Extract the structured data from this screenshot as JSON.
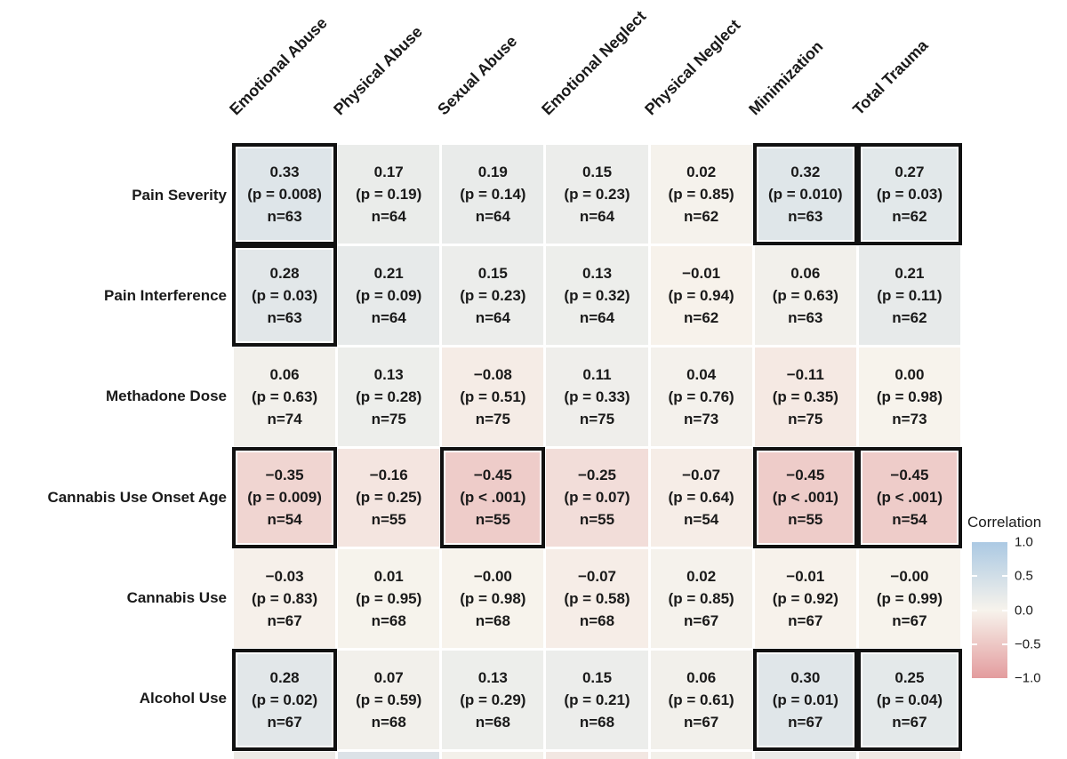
{
  "chart_data": {
    "type": "heatmap",
    "title": "",
    "description": "Correlation matrix of childhood trauma subscales vs clinical measures; each cell shows Pearson r, p-value and n; significant cells outlined in black",
    "columns": [
      "Emotional Abuse",
      "Physical Abuse",
      "Sexual Abuse",
      "Emotional Neglect",
      "Physical Neglect",
      "Minimization",
      "Total Trauma"
    ],
    "rows": [
      "Pain Severity",
      "Pain Interference",
      "Methadone Dose",
      "Cannabis Use Onset Age",
      "Cannabis Use",
      "Alcohol Use"
    ],
    "cells": [
      [
        {
          "v": 0.33,
          "d": "0.33",
          "p": "(p = 0.008)",
          "n": "n=63",
          "sig": true
        },
        {
          "v": 0.17,
          "d": "0.17",
          "p": "(p = 0.19)",
          "n": "n=64",
          "sig": false
        },
        {
          "v": 0.19,
          "d": "0.19",
          "p": "(p = 0.14)",
          "n": "n=64",
          "sig": false
        },
        {
          "v": 0.15,
          "d": "0.15",
          "p": "(p = 0.23)",
          "n": "n=64",
          "sig": false
        },
        {
          "v": 0.02,
          "d": "0.02",
          "p": "(p = 0.85)",
          "n": "n=62",
          "sig": false
        },
        {
          "v": 0.32,
          "d": "0.32",
          "p": "(p = 0.010)",
          "n": "n=63",
          "sig": true
        },
        {
          "v": 0.27,
          "d": "0.27",
          "p": "(p = 0.03)",
          "n": "n=62",
          "sig": true
        }
      ],
      [
        {
          "v": 0.28,
          "d": "0.28",
          "p": "(p = 0.03)",
          "n": "n=63",
          "sig": true
        },
        {
          "v": 0.21,
          "d": "0.21",
          "p": "(p = 0.09)",
          "n": "n=64",
          "sig": false
        },
        {
          "v": 0.15,
          "d": "0.15",
          "p": "(p = 0.23)",
          "n": "n=64",
          "sig": false
        },
        {
          "v": 0.13,
          "d": "0.13",
          "p": "(p = 0.32)",
          "n": "n=64",
          "sig": false
        },
        {
          "v": -0.01,
          "d": "−0.01",
          "p": "(p = 0.94)",
          "n": "n=62",
          "sig": false
        },
        {
          "v": 0.06,
          "d": "0.06",
          "p": "(p = 0.63)",
          "n": "n=63",
          "sig": false
        },
        {
          "v": 0.21,
          "d": "0.21",
          "p": "(p = 0.11)",
          "n": "n=62",
          "sig": false
        }
      ],
      [
        {
          "v": 0.06,
          "d": "0.06",
          "p": "(p = 0.63)",
          "n": "n=74",
          "sig": false
        },
        {
          "v": 0.13,
          "d": "0.13",
          "p": "(p = 0.28)",
          "n": "n=75",
          "sig": false
        },
        {
          "v": -0.08,
          "d": "−0.08",
          "p": "(p = 0.51)",
          "n": "n=75",
          "sig": false
        },
        {
          "v": 0.11,
          "d": "0.11",
          "p": "(p = 0.33)",
          "n": "n=75",
          "sig": false
        },
        {
          "v": 0.04,
          "d": "0.04",
          "p": "(p = 0.76)",
          "n": "n=73",
          "sig": false
        },
        {
          "v": -0.11,
          "d": "−0.11",
          "p": "(p = 0.35)",
          "n": "n=75",
          "sig": false
        },
        {
          "v": 0.0,
          "d": "0.00",
          "p": "(p = 0.98)",
          "n": "n=73",
          "sig": false
        }
      ],
      [
        {
          "v": -0.35,
          "d": "−0.35",
          "p": "(p = 0.009)",
          "n": "n=54",
          "sig": true
        },
        {
          "v": -0.16,
          "d": "−0.16",
          "p": "(p = 0.25)",
          "n": "n=55",
          "sig": false
        },
        {
          "v": -0.45,
          "d": "−0.45",
          "p": "(p < .001)",
          "n": "n=55",
          "sig": true
        },
        {
          "v": -0.25,
          "d": "−0.25",
          "p": "(p = 0.07)",
          "n": "n=55",
          "sig": false
        },
        {
          "v": -0.07,
          "d": "−0.07",
          "p": "(p = 0.64)",
          "n": "n=54",
          "sig": false
        },
        {
          "v": -0.45,
          "d": "−0.45",
          "p": "(p < .001)",
          "n": "n=55",
          "sig": true
        },
        {
          "v": -0.45,
          "d": "−0.45",
          "p": "(p < .001)",
          "n": "n=54",
          "sig": true
        }
      ],
      [
        {
          "v": -0.03,
          "d": "−0.03",
          "p": "(p = 0.83)",
          "n": "n=67",
          "sig": false
        },
        {
          "v": 0.01,
          "d": "0.01",
          "p": "(p = 0.95)",
          "n": "n=68",
          "sig": false
        },
        {
          "v": 0.0,
          "d": "−0.00",
          "p": "(p = 0.98)",
          "n": "n=68",
          "sig": false
        },
        {
          "v": -0.07,
          "d": "−0.07",
          "p": "(p = 0.58)",
          "n": "n=68",
          "sig": false
        },
        {
          "v": 0.02,
          "d": "0.02",
          "p": "(p = 0.85)",
          "n": "n=67",
          "sig": false
        },
        {
          "v": -0.01,
          "d": "−0.01",
          "p": "(p = 0.92)",
          "n": "n=67",
          "sig": false
        },
        {
          "v": 0.0,
          "d": "−0.00",
          "p": "(p = 0.99)",
          "n": "n=67",
          "sig": false
        }
      ],
      [
        {
          "v": 0.28,
          "d": "0.28",
          "p": "(p = 0.02)",
          "n": "n=67",
          "sig": true
        },
        {
          "v": 0.07,
          "d": "0.07",
          "p": "(p = 0.59)",
          "n": "n=68",
          "sig": false
        },
        {
          "v": 0.13,
          "d": "0.13",
          "p": "(p = 0.29)",
          "n": "n=68",
          "sig": false
        },
        {
          "v": 0.15,
          "d": "0.15",
          "p": "(p = 0.21)",
          "n": "n=68",
          "sig": false
        },
        {
          "v": 0.06,
          "d": "0.06",
          "p": "(p = 0.61)",
          "n": "n=67",
          "sig": false
        },
        {
          "v": 0.3,
          "d": "0.30",
          "p": "(p = 0.01)",
          "n": "n=67",
          "sig": true
        },
        {
          "v": 0.25,
          "d": "0.25",
          "p": "(p = 0.04)",
          "n": "n=67",
          "sig": true
        }
      ]
    ],
    "partial_bottom_row_colors": [
      "#eceae6",
      "#dce2e7",
      "#f3f0ea",
      "#f2e7e2",
      "#f3f0ea",
      "#eaeae8",
      "#f0e9e4"
    ],
    "legend": {
      "title": "Correlation",
      "ticks": [
        "1.0",
        "0.5",
        "0.0",
        "−0.5",
        "−1.0"
      ],
      "position": "right",
      "range": [
        -1,
        1
      ]
    },
    "colors": {
      "positive_end": "#abc9e3",
      "zero": "#f7f3ec",
      "negative_end": "#e39c9e",
      "significant_border": "#111111",
      "text": "#1a1a1a"
    }
  }
}
